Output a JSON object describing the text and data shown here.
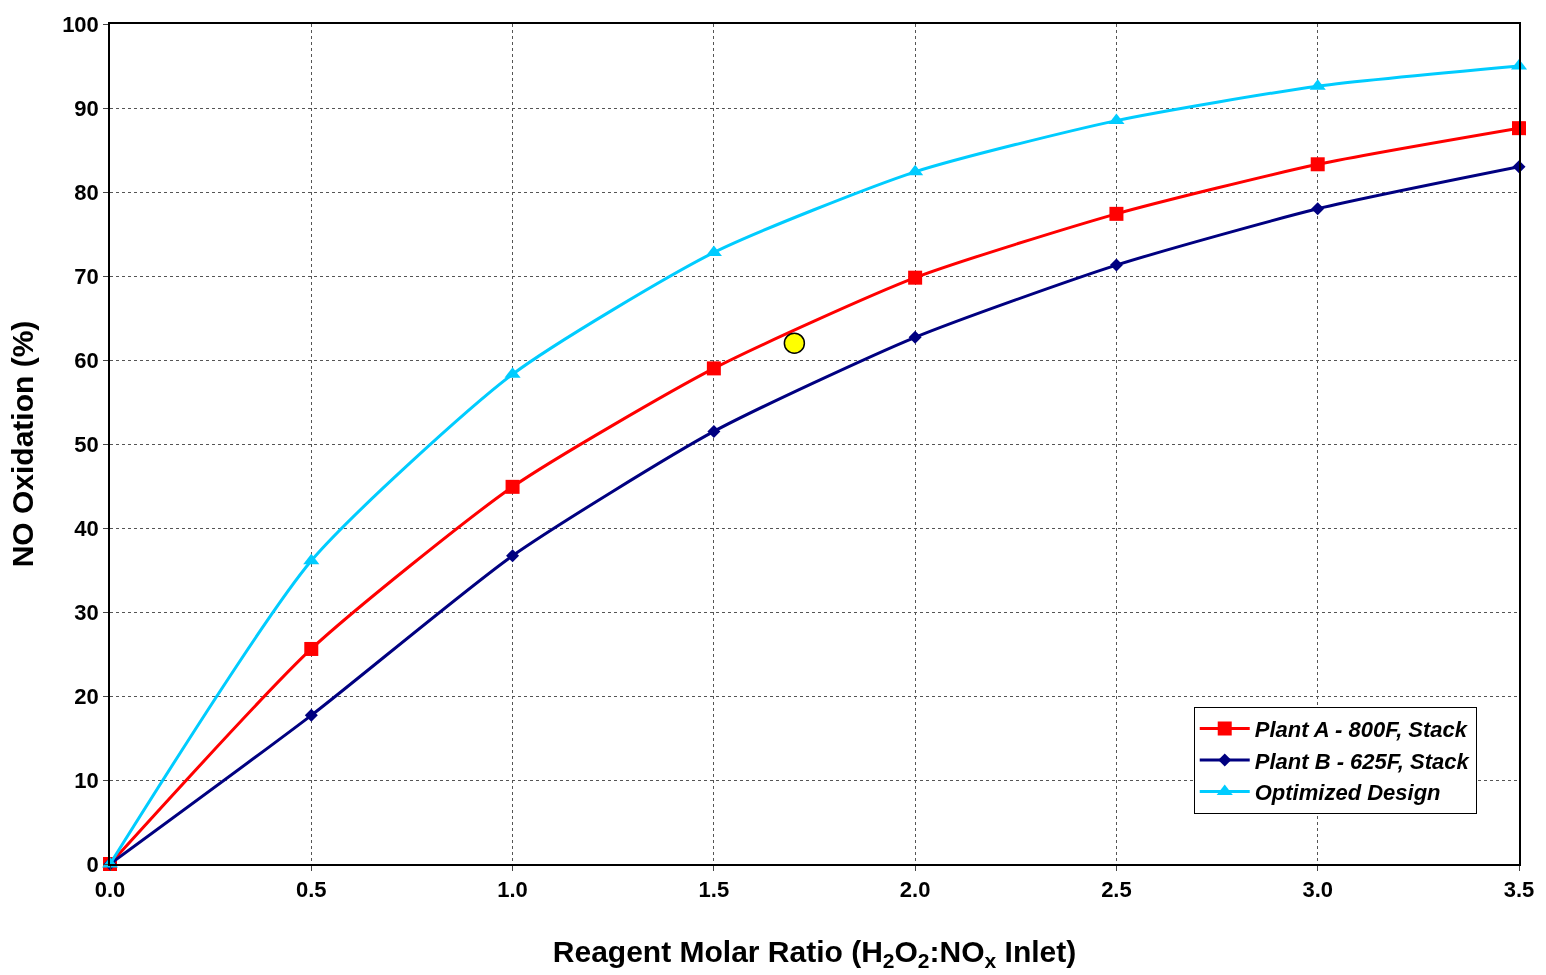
{
  "chart_data": {
    "type": "line",
    "xlabel": "Reagent Molar Ratio (H$_{2}$O$_{2}$:NO$_{x}$ Inlet)",
    "ylabel": "NO Oxidation (%)",
    "x": [
      0,
      0.5,
      1.0,
      1.5,
      2.0,
      2.5,
      3.0,
      3.5
    ],
    "series": [
      {
        "name": "Plant A - 800F, Stack",
        "color": "#ff0000",
        "marker": "square",
        "values": [
          0,
          25.6,
          44.9,
          59.0,
          69.8,
          77.4,
          83.3,
          87.6
        ]
      },
      {
        "name": "Plant B - 625F, Stack",
        "color": "#000080",
        "marker": "diamond",
        "values": [
          0,
          17.7,
          36.7,
          51.5,
          62.7,
          71.3,
          78.0,
          83.0
        ]
      },
      {
        "name": "Optimized Design",
        "color": "#00ccff",
        "marker": "triangle",
        "values": [
          0,
          36.1,
          58.3,
          72.8,
          82.4,
          88.5,
          92.6,
          95.0
        ]
      },
      {
        "type": "scatter",
        "color": "#ffff00",
        "marker": "circle",
        "x": [
          1.7
        ],
        "values": [
          62
        ]
      }
    ],
    "xlim": [
      0,
      3.5
    ],
    "xticks": [
      {
        "value": 0,
        "label": "0.0"
      },
      {
        "value": 0.5,
        "label": "0.5"
      },
      {
        "value": 1.0,
        "label": "1.0"
      },
      {
        "value": 1.5,
        "label": "1.5"
      },
      {
        "value": 2.0,
        "label": "2.0"
      },
      {
        "value": 2.5,
        "label": "2.5"
      },
      {
        "value": 3.0,
        "label": "3.0"
      },
      {
        "value": 3.5,
        "label": "3.5"
      }
    ],
    "ylim": [
      0,
      100
    ],
    "yticks": [
      0,
      10,
      20,
      30,
      40,
      50,
      60,
      70,
      80,
      90,
      100
    ],
    "grid": true,
    "legend": "bottom right",
    "line_style": "solid"
  }
}
